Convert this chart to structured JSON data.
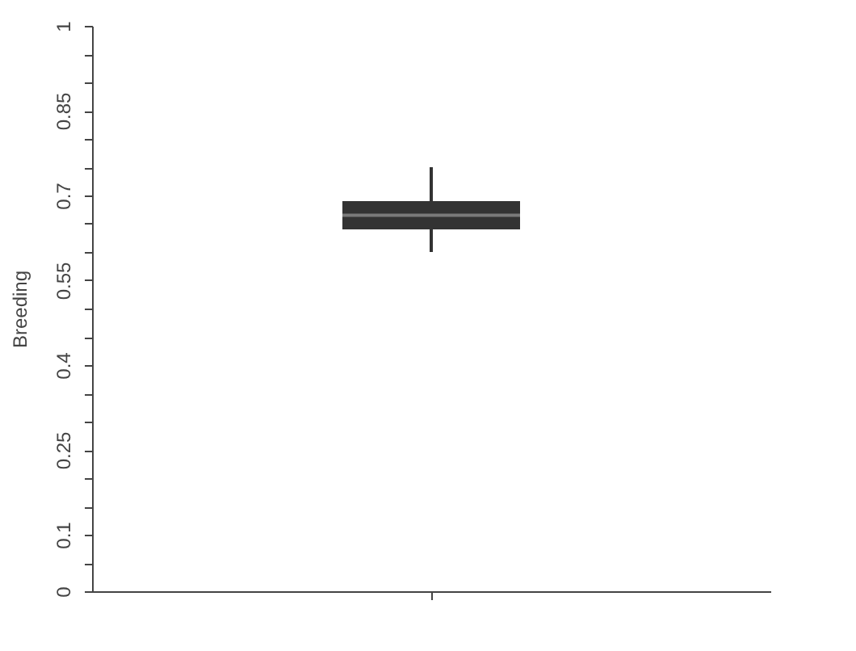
{
  "chart_data": {
    "type": "box",
    "ylabel": "Breeding",
    "categories": [
      null
    ],
    "boxes": [
      {
        "low": 0.6,
        "q1": 0.64,
        "median": 0.665,
        "q3": 0.69,
        "high": 0.75
      }
    ],
    "color": "#333333",
    "ylim": [
      0,
      1
    ],
    "yticks": [
      0,
      {
        "value": 0.05,
        "label": null
      },
      0.1,
      {
        "value": 0.15,
        "label": null
      },
      {
        "value": 0.2,
        "label": null
      },
      0.25,
      {
        "value": 0.3,
        "label": null
      },
      {
        "value": 0.35,
        "label": null
      },
      0.4,
      {
        "value": 0.45,
        "label": null
      },
      {
        "value": 0.5,
        "label": null
      },
      0.55,
      {
        "value": 0.6,
        "label": null
      },
      {
        "value": 0.65,
        "label": null
      },
      0.7,
      {
        "value": 0.75,
        "label": null
      },
      {
        "value": 0.8,
        "label": null
      },
      0.85,
      {
        "value": 0.9,
        "label": null
      },
      {
        "value": 0.95,
        "label": null
      },
      1
    ],
    "tick_labels": "y",
    "grid": false
  }
}
